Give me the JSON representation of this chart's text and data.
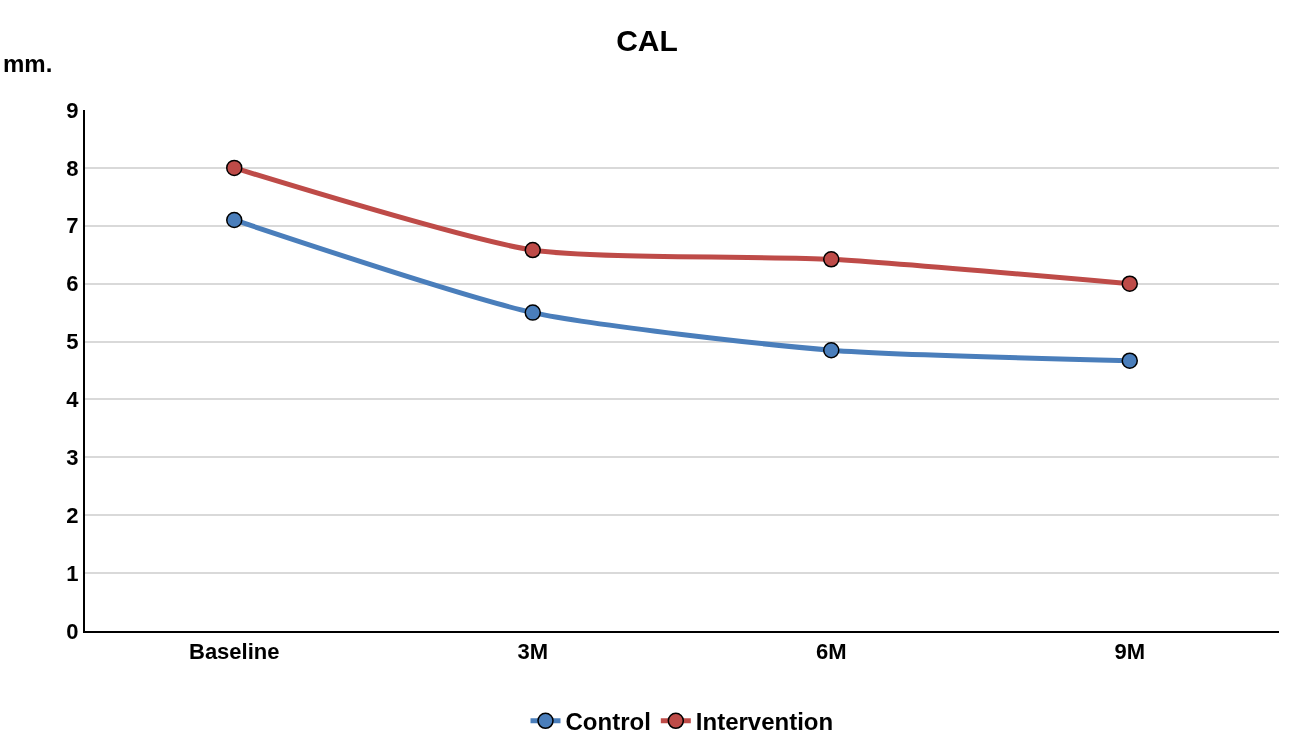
{
  "chart_data": {
    "type": "line",
    "title": "CAL",
    "ylabel": "mm.",
    "categories": [
      "Baseline",
      "3M",
      "6M",
      "9M"
    ],
    "series": [
      {
        "name": "Control",
        "color": "#4a7ebb",
        "values": [
          7.1,
          5.5,
          4.85,
          4.67
        ]
      },
      {
        "name": "Intervention",
        "color": "#be4b48",
        "values": [
          8.0,
          6.58,
          6.42,
          6.0
        ]
      }
    ],
    "ylim": [
      0,
      9
    ],
    "yticks": [
      0,
      1,
      2,
      3,
      4,
      5,
      6,
      7,
      8,
      9
    ],
    "grid": "y",
    "legend": "bottom",
    "marker": "circle",
    "line_style": "solid"
  }
}
